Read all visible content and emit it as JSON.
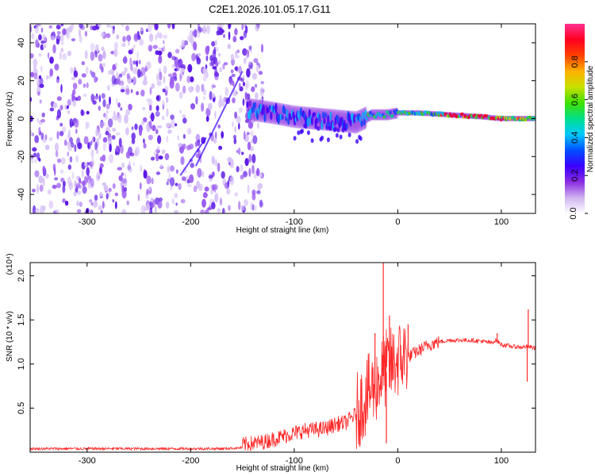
{
  "figure": {
    "title": "C2E1.2026.101.05.17.G11"
  },
  "chart_data": [
    {
      "type": "heatmap",
      "title": "C2E1.2026.101.05.17.G11",
      "xlabel": "Height of straight line (km)",
      "ylabel": "Frequency (Hz)",
      "xlim": [
        -355,
        133
      ],
      "ylim": [
        -50,
        50
      ],
      "x_ticks": [
        -300,
        -200,
        -100,
        0,
        100
      ],
      "y_ticks": [
        -40,
        -20,
        0,
        20,
        40
      ],
      "colorbar": {
        "label": "Normalized spectral amplitude",
        "range": [
          0,
          1
        ],
        "ticks": [
          "0.0",
          "0.2",
          "0.4",
          "0.6",
          "0.8"
        ],
        "colors": [
          "#ffffff",
          "#cfb2f0",
          "#8a2be2",
          "#3a00ff",
          "#0050ff",
          "#00c8ff",
          "#00e08a",
          "#40e000",
          "#c8e000",
          "#ffb000",
          "#ff4000",
          "#ff0020",
          "#ff3090"
        ]
      },
      "trace_center_hz": [
        [
          -145,
          5
        ],
        [
          -120,
          3
        ],
        [
          -100,
          1
        ],
        [
          -80,
          0
        ],
        [
          -60,
          -1
        ],
        [
          -40,
          -2
        ],
        [
          -25,
          2
        ],
        [
          -10,
          2
        ],
        [
          0,
          3
        ],
        [
          20,
          3
        ],
        [
          50,
          2
        ],
        [
          80,
          1
        ],
        [
          100,
          0
        ],
        [
          133,
          0
        ]
      ],
      "features": {
        "noise_region_km": [
          -355,
          -145
        ],
        "coherent_region_km": [
          -145,
          133
        ],
        "peak_amplitude_km": [
          50,
          105
        ],
        "peak_amplitude": 1.0
      }
    },
    {
      "type": "line",
      "xlabel": "Height of straight line (km)",
      "ylabel": "SNR (10 * v/v)",
      "yunit_multiplier": "(x10⁴)",
      "xlim": [
        -355,
        133
      ],
      "ylim": [
        0,
        2.15
      ],
      "x_ticks": [
        -300,
        -200,
        -100,
        0,
        100
      ],
      "y_ticks": [
        "0.5",
        "1.0",
        "1.5",
        "2.0"
      ],
      "color": "#ff2a2a",
      "series": [
        {
          "values": [
            [
              -355,
              0.04
            ],
            [
              -300,
              0.04
            ],
            [
              -250,
              0.04
            ],
            [
              -200,
              0.04
            ],
            [
              -170,
              0.04
            ],
            [
              -150,
              0.05
            ],
            [
              -130,
              0.08
            ],
            [
              -115,
              0.13
            ],
            [
              -100,
              0.18
            ],
            [
              -90,
              0.21
            ],
            [
              -80,
              0.22
            ],
            [
              -70,
              0.23
            ],
            [
              -60,
              0.28
            ],
            [
              -50,
              0.3
            ],
            [
              -40,
              0.4
            ],
            [
              -30,
              0.6
            ],
            [
              -20,
              0.75
            ],
            [
              -12,
              0.9
            ],
            [
              -5,
              0.95
            ],
            [
              0,
              1.0
            ],
            [
              10,
              1.08
            ],
            [
              20,
              1.15
            ],
            [
              30,
              1.22
            ],
            [
              40,
              1.25
            ],
            [
              50,
              1.27
            ],
            [
              60,
              1.27
            ],
            [
              70,
              1.27
            ],
            [
              80,
              1.26
            ],
            [
              90,
              1.24
            ],
            [
              95,
              1.27
            ],
            [
              100,
              1.22
            ],
            [
              110,
              1.2
            ],
            [
              120,
              1.19
            ],
            [
              125,
              1.2
            ],
            [
              133,
              1.18
            ]
          ],
          "spikes": [
            [
              -14,
              2.15
            ],
            [
              -11,
              0.1
            ],
            [
              -22,
              1.35
            ],
            [
              -8,
              1.55
            ],
            [
              10,
              1.45
            ],
            [
              125,
              0.8
            ],
            [
              126,
              1.62
            ],
            [
              96,
              1.35
            ]
          ]
        }
      ]
    }
  ]
}
